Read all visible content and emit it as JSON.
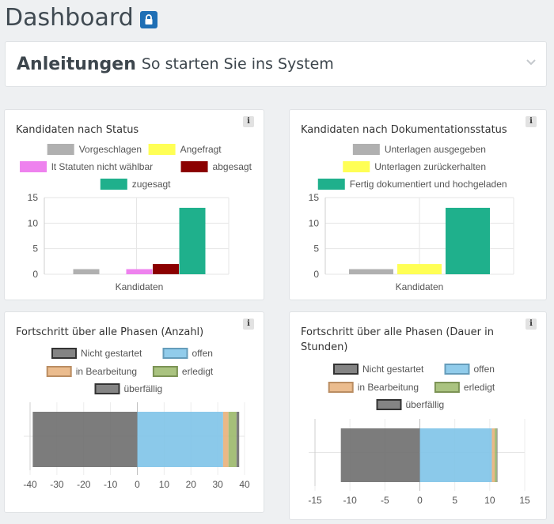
{
  "page": {
    "title": "Dashboard",
    "lock_icon": "lock-icon",
    "accent": "#1f6fb5"
  },
  "accordion": {
    "title": "Anleitungen",
    "subtitle": "So starten Sie ins System",
    "icon": "chevron-down-icon"
  },
  "cards": {
    "status": {
      "title": "Kandidaten nach Status",
      "info": "i"
    },
    "docs": {
      "title": "Kandidaten nach Dokumentationsstatus",
      "info": "i"
    },
    "progress_count": {
      "title": "Fortschritt über alle Phasen (Anzahl)",
      "info": "i"
    },
    "progress_hours": {
      "title_line1": "Fortschritt über alle Phasen (Dauer in",
      "title_line2": "Stunden)",
      "info": "i"
    }
  },
  "chart_data": [
    {
      "id": "status",
      "type": "bar",
      "categories": [
        "Kandidaten"
      ],
      "ylim": [
        0,
        15
      ],
      "yticks": [
        0,
        5,
        10,
        15
      ],
      "series": [
        {
          "name": "Vorgeschlagen",
          "values": [
            1
          ],
          "color": "#b0b0b0"
        },
        {
          "name": "Angefragt",
          "values": [
            0
          ],
          "color": "#ffff55"
        },
        {
          "name": "lt Statuten nicht wählbar",
          "values": [
            1
          ],
          "color": "#ee82ee"
        },
        {
          "name": "abgesagt",
          "values": [
            2
          ],
          "color": "#8b0000"
        },
        {
          "name": "zugesagt",
          "values": [
            13
          ],
          "color": "#1fb08c"
        }
      ],
      "legend": "top"
    },
    {
      "id": "docs",
      "type": "bar",
      "categories": [
        "Kandidaten"
      ],
      "ylim": [
        0,
        15
      ],
      "yticks": [
        0,
        5,
        10,
        15
      ],
      "series": [
        {
          "name": "Unterlagen ausgegeben",
          "values": [
            1
          ],
          "color": "#b0b0b0"
        },
        {
          "name": "Unterlagen zurückerhalten",
          "values": [
            2
          ],
          "color": "#ffff55"
        },
        {
          "name": "Fertig dokumentiert und hochgeladen",
          "values": [
            13
          ],
          "color": "#1fb08c"
        }
      ],
      "legend": "top"
    },
    {
      "id": "progress_count",
      "type": "bar",
      "orientation": "horizontal",
      "stacked": true,
      "xlim": [
        -40,
        40
      ],
      "xticks": [
        -40,
        -30,
        -20,
        -10,
        0,
        10,
        20,
        30,
        40
      ],
      "series": [
        {
          "name": "Nicht gestartet",
          "values": [
            -39
          ],
          "color": "#6e6e6e"
        },
        {
          "name": "offen",
          "values": [
            32
          ],
          "color": "#7ec3e8"
        },
        {
          "name": "in Bearbeitung",
          "values": [
            2
          ],
          "color": "#e8b07a"
        },
        {
          "name": "erledigt",
          "values": [
            3
          ],
          "color": "#9bb86a"
        },
        {
          "name": "überfällig",
          "values": [
            1
          ],
          "color": "#6e6e6e"
        }
      ],
      "legend": "top"
    },
    {
      "id": "progress_hours",
      "type": "bar",
      "orientation": "horizontal",
      "stacked": true,
      "xlim": [
        -15,
        15
      ],
      "xticks": [
        -15,
        -10,
        -5,
        0,
        5,
        10,
        15
      ],
      "series": [
        {
          "name": "Nicht gestartet",
          "values": [
            -11.3
          ],
          "color": "#6e6e6e"
        },
        {
          "name": "offen",
          "values": [
            10.3
          ],
          "color": "#7ec3e8"
        },
        {
          "name": "in Bearbeitung",
          "values": [
            0.4
          ],
          "color": "#e8b07a"
        },
        {
          "name": "erledigt",
          "values": [
            0.3
          ],
          "color": "#9bb86a"
        },
        {
          "name": "überfällig",
          "values": [
            0.1
          ],
          "color": "#6e6e6e"
        }
      ],
      "legend": "top"
    }
  ]
}
